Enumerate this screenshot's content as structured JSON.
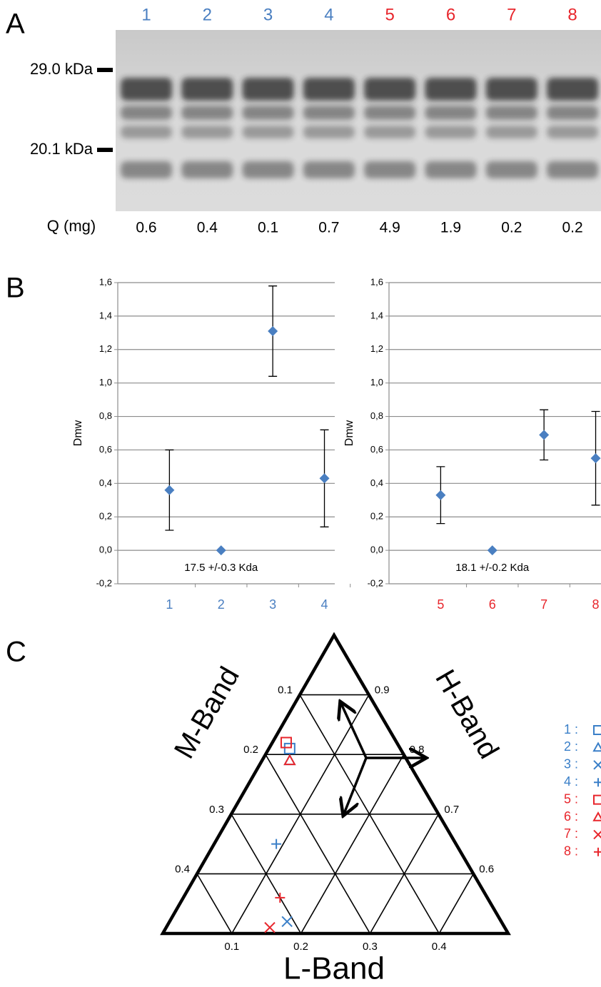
{
  "panel_labels": [
    "A",
    "B",
    "C"
  ],
  "gel": {
    "lanes": [
      "1",
      "2",
      "3",
      "4",
      "5",
      "6",
      "7",
      "8"
    ],
    "lane_colors": [
      "#4a7fc1",
      "#4a7fc1",
      "#4a7fc1",
      "#4a7fc1",
      "#e8262c",
      "#e8262c",
      "#e8262c",
      "#e8262c"
    ],
    "markers": [
      "29.0 kDa",
      "20.1 kDa"
    ],
    "q_label": "Q (mg)",
    "q_values": [
      0.6,
      0.4,
      0.1,
      0.7,
      4.9,
      1.9,
      0.2,
      0.2
    ]
  },
  "chart_data": [
    {
      "type": "scatter",
      "y_label": "Dmw",
      "categories": [
        "1",
        "2",
        "3",
        "4"
      ],
      "category_color": "#4a7fc1",
      "values": [
        0.36,
        0,
        1.31,
        0.43
      ],
      "errors": [
        0.24,
        0,
        0.27,
        0.29
      ],
      "color": "#4a7fc1",
      "annotation": "17.5 +/-0.3 Kda",
      "ylim": [
        -0.2,
        1.6
      ],
      "yticks": [
        {
          "value": -0.2,
          "label": "-0,2"
        },
        {
          "value": 0,
          "label": "0,0"
        },
        {
          "value": 0.2,
          "label": "0,2"
        },
        {
          "value": 0.4,
          "label": "0,4"
        },
        {
          "value": 0.6,
          "label": "0,6"
        },
        {
          "value": 0.8,
          "label": "0,8"
        },
        {
          "value": 1.0,
          "label": "1,0"
        },
        {
          "value": 1.2,
          "label": "1,2"
        },
        {
          "value": 1.4,
          "label": "1,4"
        },
        {
          "value": 1.6,
          "label": "1,6"
        }
      ],
      "grid": true
    },
    {
      "type": "scatter",
      "y_label": "Dmw",
      "categories": [
        "5",
        "6",
        "7",
        "8"
      ],
      "category_color": "#e8262c",
      "values": [
        0.33,
        0,
        0.69,
        0.55
      ],
      "errors": [
        0.17,
        0,
        0.15,
        0.28
      ],
      "color": "#4a7fc1",
      "annotation": "18.1 +/-0.2 Kda",
      "ylim": [
        -0.2,
        1.6
      ],
      "yticks": [
        {
          "value": -0.2,
          "label": "-0,2"
        },
        {
          "value": 0,
          "label": "0,0"
        },
        {
          "value": 0.2,
          "label": "0,2"
        },
        {
          "value": 0.4,
          "label": "0,4"
        },
        {
          "value": 0.6,
          "label": "0,6"
        },
        {
          "value": 0.8,
          "label": "0,8"
        },
        {
          "value": 1.0,
          "label": "1,0"
        },
        {
          "value": 1.2,
          "label": "1,2"
        },
        {
          "value": 1.4,
          "label": "1,4"
        },
        {
          "value": 1.6,
          "label": "1,6"
        }
      ],
      "grid": true
    },
    {
      "type": "ternary",
      "l_label": "L-Band",
      "m_label": "M-Band",
      "h_label": "H-Band",
      "l_ticks": [
        0.1,
        0.2,
        0.3,
        0.4
      ],
      "m_ticks": [
        0.1,
        0.2,
        0.3,
        0.4
      ],
      "h_ticks": [
        0.9,
        0.8,
        0.7,
        0.6
      ],
      "points": [
        {
          "name": "1 :",
          "color": "#3a7fc8",
          "marker": "square",
          "l": 0.03,
          "m": 0.16
        },
        {
          "name": "2 :",
          "color": "#3a7fc8",
          "marker": "triangle",
          "l": 0.04,
          "m": 0.17
        },
        {
          "name": "3 :",
          "color": "#3a7fc8",
          "marker": "x",
          "l": 0.17,
          "m": 0.31
        },
        {
          "name": "4 :",
          "color": "#3a7fc8",
          "marker": "plus",
          "l": 0.09,
          "m": 0.26
        },
        {
          "name": "5 :",
          "color": "#e8262c",
          "marker": "square",
          "l": 0.02,
          "m": 0.16
        },
        {
          "name": "6 :",
          "color": "#e8262c",
          "marker": "triangle",
          "l": 0.04,
          "m": 0.17
        },
        {
          "name": "7 :",
          "color": "#e8262c",
          "marker": "x",
          "l": 0.15,
          "m": 0.34
        },
        {
          "name": "8 :",
          "color": "#e8262c",
          "marker": "plus",
          "l": 0.14,
          "m": 0.3
        }
      ]
    }
  ]
}
